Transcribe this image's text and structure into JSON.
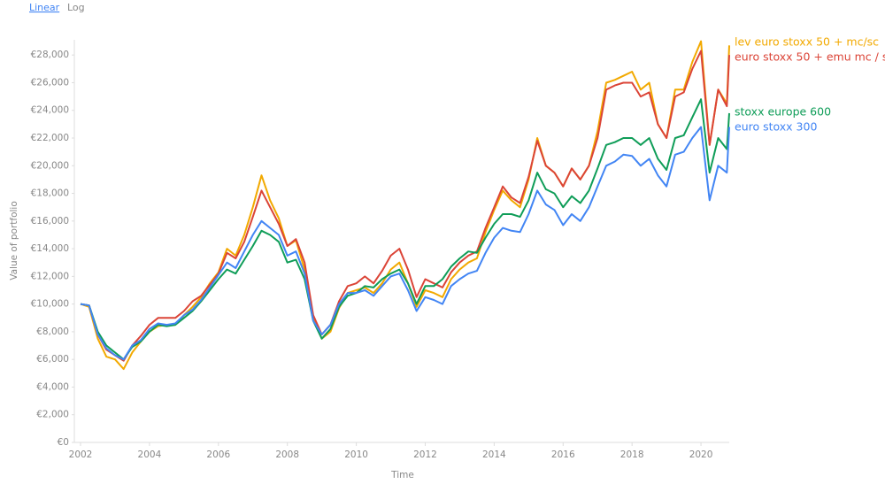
{
  "chart_data": {
    "type": "line",
    "scale_options": [
      "Linear",
      "Log"
    ],
    "log_scale": false,
    "grid": false,
    "x_label": "Time",
    "y_label": "Value of portfolio",
    "xlim": [
      2001.82,
      2020.82
    ],
    "xticks": [
      2002,
      2004,
      2006,
      2008,
      2010,
      2012,
      2014,
      2016,
      2018,
      2020
    ],
    "ylim": [
      0,
      29100
    ],
    "yticks": [
      {
        "value": 0,
        "label": "€0"
      },
      {
        "value": 2000,
        "label": "€2,000"
      },
      {
        "value": 4000,
        "label": "€4,000"
      },
      {
        "value": 6000,
        "label": "€6,000"
      },
      {
        "value": 8000,
        "label": "€8,000"
      },
      {
        "value": 10000,
        "label": "€10,000"
      },
      {
        "value": 12000,
        "label": "€12,000"
      },
      {
        "value": 14000,
        "label": "€14,000"
      },
      {
        "value": 16000,
        "label": "€16,000"
      },
      {
        "value": 18000,
        "label": "€18,000"
      },
      {
        "value": 20000,
        "label": "€20,000"
      },
      {
        "value": 22000,
        "label": "€22,000"
      },
      {
        "value": 24000,
        "label": "€24,000"
      },
      {
        "value": 26000,
        "label": "€26,000"
      },
      {
        "value": 28000,
        "label": "€28,000"
      }
    ],
    "x": [
      2002,
      2002.25,
      2002.5,
      2002.75,
      2003,
      2003.25,
      2003.5,
      2003.75,
      2004,
      2004.25,
      2004.5,
      2004.75,
      2005,
      2005.25,
      2005.5,
      2005.75,
      2006,
      2006.25,
      2006.5,
      2006.75,
      2007,
      2007.25,
      2007.5,
      2007.75,
      2008,
      2008.25,
      2008.5,
      2008.75,
      2009,
      2009.25,
      2009.5,
      2009.75,
      2010,
      2010.25,
      2010.5,
      2010.75,
      2011,
      2011.25,
      2011.5,
      2011.75,
      2012,
      2012.25,
      2012.5,
      2012.75,
      2013,
      2013.25,
      2013.5,
      2013.75,
      2014,
      2014.25,
      2014.5,
      2014.75,
      2015,
      2015.25,
      2015.5,
      2015.75,
      2016,
      2016.25,
      2016.5,
      2016.75,
      2017,
      2017.25,
      2017.5,
      2017.75,
      2018,
      2018.25,
      2018.5,
      2018.75,
      2019,
      2019.25,
      2019.5,
      2019.75,
      2020,
      2020.25,
      2020.5,
      2020.75,
      2020.82
    ],
    "series": [
      {
        "name": "lev euro stoxx 50 + mc/sc",
        "color": "#f2a900",
        "values": [
          10000,
          9800,
          7500,
          6200,
          6000,
          5300,
          6500,
          7300,
          8000,
          8400,
          8500,
          8500,
          9200,
          9800,
          10500,
          11500,
          12300,
          14000,
          13500,
          15000,
          17000,
          19300,
          17500,
          16200,
          14200,
          14600,
          12500,
          9000,
          7500,
          8000,
          9700,
          10800,
          11000,
          11200,
          10800,
          11500,
          12500,
          13000,
          11500,
          9800,
          11000,
          10800,
          10500,
          11800,
          12500,
          13000,
          13300,
          15200,
          16800,
          18200,
          17500,
          17000,
          19000,
          22000,
          20000,
          19500,
          18500,
          19800,
          19000,
          20000,
          22500,
          26000,
          26200,
          26500,
          26800,
          25500,
          26000,
          23000,
          22000,
          25500,
          25500,
          27500,
          29000,
          21500,
          25500,
          24500,
          28700
        ]
      },
      {
        "name": "euro stoxx 50 + emu mc / sc",
        "color": "#db4437",
        "values": [
          10000,
          9900,
          7800,
          6700,
          6300,
          5900,
          7000,
          7700,
          8500,
          9000,
          9000,
          9000,
          9500,
          10200,
          10600,
          11400,
          12200,
          13700,
          13300,
          14500,
          16300,
          18200,
          17000,
          15800,
          14200,
          14700,
          13000,
          9200,
          7800,
          8500,
          10200,
          11300,
          11500,
          12000,
          11500,
          12400,
          13500,
          14000,
          12500,
          10500,
          11800,
          11500,
          11200,
          12300,
          13000,
          13500,
          13800,
          15500,
          17000,
          18500,
          17700,
          17300,
          19200,
          21800,
          20000,
          19500,
          18500,
          19800,
          19000,
          20000,
          22000,
          25500,
          25800,
          26000,
          26000,
          25000,
          25300,
          23000,
          22000,
          25000,
          25300,
          27000,
          28300,
          21500,
          25500,
          24300,
          28000
        ]
      },
      {
        "name": "stoxx europe 600",
        "color": "#0f9d58",
        "values": [
          10000,
          9900,
          8000,
          7000,
          6500,
          6000,
          6900,
          7300,
          8000,
          8500,
          8400,
          8500,
          9000,
          9500,
          10200,
          11000,
          11800,
          12500,
          12200,
          13200,
          14200,
          15300,
          15000,
          14500,
          13000,
          13200,
          11800,
          8800,
          7500,
          8200,
          9800,
          10600,
          10800,
          11300,
          11200,
          11800,
          12200,
          12500,
          11500,
          10000,
          11300,
          11300,
          11800,
          12700,
          13300,
          13800,
          13700,
          14800,
          15800,
          16500,
          16500,
          16300,
          17500,
          19500,
          18300,
          18000,
          17000,
          17800,
          17300,
          18200,
          19800,
          21500,
          21700,
          22000,
          22000,
          21500,
          22000,
          20500,
          19700,
          22000,
          22200,
          23500,
          24800,
          19500,
          22000,
          21200,
          23800
        ]
      },
      {
        "name": "euro stoxx 300",
        "color": "#4285f4",
        "values": [
          10000,
          9900,
          7800,
          6800,
          6300,
          6000,
          7000,
          7400,
          8200,
          8600,
          8500,
          8600,
          9200,
          9600,
          10300,
          11200,
          12100,
          13000,
          12600,
          13800,
          15000,
          16000,
          15500,
          15000,
          13500,
          13800,
          12200,
          8800,
          7800,
          8500,
          10000,
          10800,
          10800,
          11000,
          10600,
          11300,
          12000,
          12200,
          11000,
          9500,
          10500,
          10300,
          10000,
          11300,
          11800,
          12200,
          12400,
          13700,
          14800,
          15500,
          15300,
          15200,
          16500,
          18200,
          17200,
          16800,
          15700,
          16500,
          16000,
          17000,
          18500,
          20000,
          20300,
          20800,
          20700,
          20000,
          20500,
          19300,
          18500,
          20800,
          21000,
          22000,
          22800,
          17500,
          20000,
          19500,
          22800
        ]
      }
    ]
  }
}
